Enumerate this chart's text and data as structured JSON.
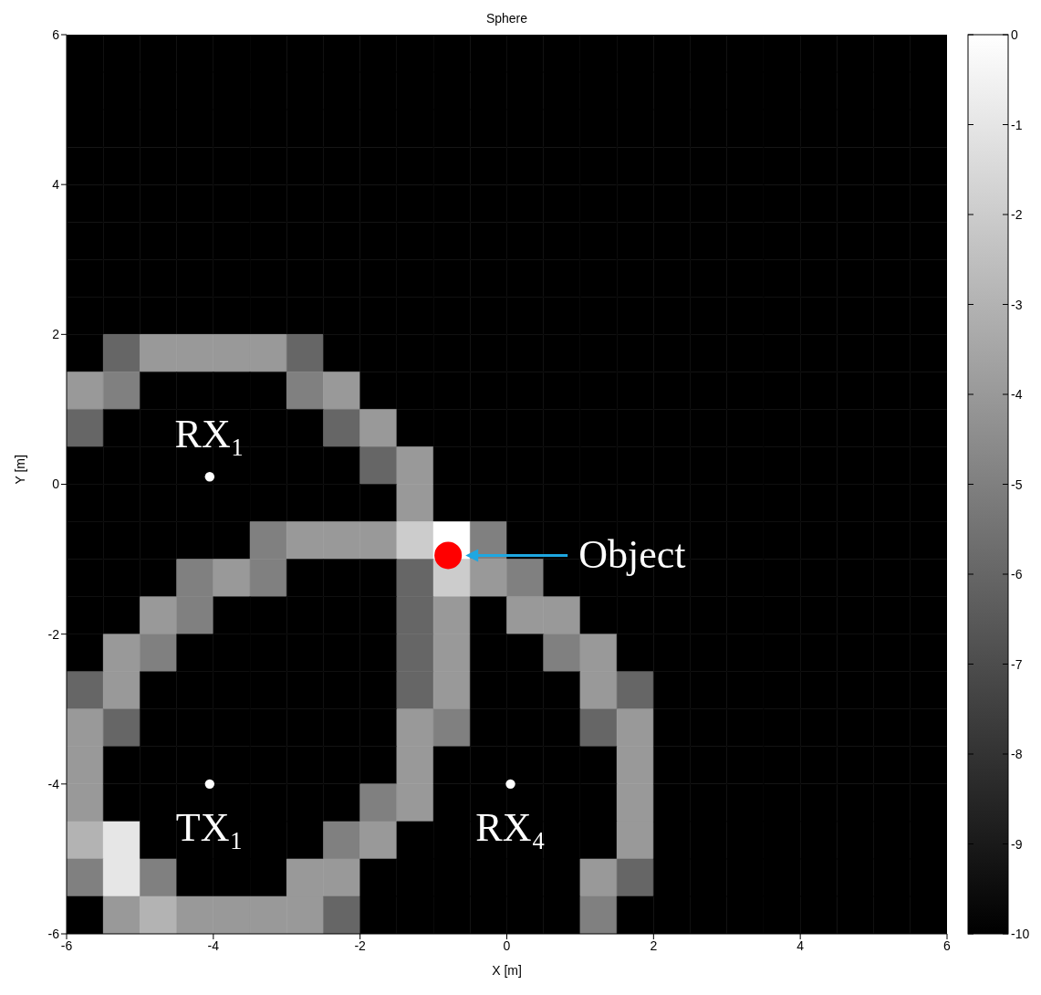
{
  "chart_data": {
    "type": "heatmap",
    "title": "Sphere",
    "xlabel": "X [m]",
    "ylabel": "Y [m]",
    "x": [
      -5.75,
      -5.25,
      -4.75,
      -4.25,
      -3.75,
      -3.25,
      -2.75,
      -2.25,
      -1.75,
      -1.25,
      -0.75,
      -0.25,
      0.25,
      0.75,
      1.25,
      1.75,
      2.25,
      2.75,
      3.25,
      3.75,
      4.25,
      4.75,
      5.25,
      5.75
    ],
    "y": [
      5.75,
      5.25,
      4.75,
      4.25,
      3.75,
      3.25,
      2.75,
      2.25,
      1.75,
      1.25,
      0.75,
      0.25,
      -0.25,
      -0.75,
      -1.25,
      -1.75,
      -2.25,
      -2.75,
      -3.25,
      -3.75,
      -4.25,
      -4.75,
      -5.25,
      -5.75
    ],
    "xlim": [
      -6,
      6
    ],
    "ylim": [
      -6,
      6
    ],
    "xticks": [
      -6,
      -4,
      -2,
      0,
      2,
      4,
      6
    ],
    "yticks": [
      -6,
      -4,
      -2,
      0,
      2,
      4,
      6
    ],
    "clim": [
      -10,
      0
    ],
    "cticks": [
      -10,
      -9,
      -8,
      -7,
      -6,
      -5,
      -4,
      -3,
      -2,
      -1,
      0
    ],
    "cells": [
      [
        -10,
        -10,
        -10,
        -10,
        -10,
        -10,
        -10,
        -10,
        -10,
        -10,
        -10,
        -10,
        -10,
        -10,
        -10,
        -10,
        -10,
        -10,
        -10,
        -10,
        -10,
        -10,
        -10,
        -10
      ],
      [
        -10,
        -10,
        -10,
        -10,
        -10,
        -10,
        -10,
        -10,
        -10,
        -10,
        -10,
        -10,
        -10,
        -10,
        -10,
        -10,
        -10,
        -10,
        -10,
        -10,
        -10,
        -10,
        -10,
        -10
      ],
      [
        -10,
        -10,
        -10,
        -10,
        -10,
        -10,
        -10,
        -10,
        -10,
        -10,
        -10,
        -10,
        -10,
        -10,
        -10,
        -10,
        -10,
        -10,
        -10,
        -10,
        -10,
        -10,
        -10,
        -10
      ],
      [
        -10,
        -10,
        -10,
        -10,
        -10,
        -10,
        -10,
        -10,
        -10,
        -10,
        -10,
        -10,
        -10,
        -10,
        -10,
        -10,
        -10,
        -10,
        -10,
        -10,
        -10,
        -10,
        -10,
        -10
      ],
      [
        -10,
        -10,
        -10,
        -10,
        -10,
        -10,
        -10,
        -10,
        -10,
        -10,
        -10,
        -10,
        -10,
        -10,
        -10,
        -10,
        -10,
        -10,
        -10,
        -10,
        -10,
        -10,
        -10,
        -10
      ],
      [
        -10,
        -10,
        -10,
        -10,
        -10,
        -10,
        -10,
        -10,
        -10,
        -10,
        -10,
        -10,
        -10,
        -10,
        -10,
        -10,
        -10,
        -10,
        -10,
        -10,
        -10,
        -10,
        -10,
        -10
      ],
      [
        -10,
        -10,
        -10,
        -10,
        -10,
        -10,
        -10,
        -10,
        -10,
        -10,
        -10,
        -10,
        -10,
        -10,
        -10,
        -10,
        -10,
        -10,
        -10,
        -10,
        -10,
        -10,
        -10,
        -10
      ],
      [
        -10,
        -10,
        -10,
        -10,
        -10,
        -10,
        -10,
        -10,
        -10,
        -10,
        -10,
        -10,
        -10,
        -10,
        -10,
        -10,
        -10,
        -10,
        -10,
        -10,
        -10,
        -10,
        -10,
        -10
      ],
      [
        -10,
        -6,
        -4,
        -4,
        -4,
        -4,
        -6,
        -10,
        -10,
        -10,
        -10,
        -10,
        -10,
        -10,
        -10,
        -10,
        -10,
        -10,
        -10,
        -10,
        -10,
        -10,
        -10,
        -10
      ],
      [
        -4,
        -5,
        -10,
        -10,
        -10,
        -10,
        -5,
        -4,
        -10,
        -10,
        -10,
        -10,
        -10,
        -10,
        -10,
        -10,
        -10,
        -10,
        -10,
        -10,
        -10,
        -10,
        -10,
        -10
      ],
      [
        -6,
        -10,
        -10,
        -10,
        -10,
        -10,
        -10,
        -6,
        -4,
        -10,
        -10,
        -10,
        -10,
        -10,
        -10,
        -10,
        -10,
        -10,
        -10,
        -10,
        -10,
        -10,
        -10,
        -10
      ],
      [
        -10,
        -10,
        -10,
        -10,
        -10,
        -10,
        -10,
        -10,
        -6,
        -4,
        -10,
        -10,
        -10,
        -10,
        -10,
        -10,
        -10,
        -10,
        -10,
        -10,
        -10,
        -10,
        -10,
        -10
      ],
      [
        -10,
        -10,
        -10,
        -10,
        -10,
        -10,
        -10,
        -10,
        -10,
        -4,
        -10,
        -10,
        -10,
        -10,
        -10,
        -10,
        -10,
        -10,
        -10,
        -10,
        -10,
        -10,
        -10,
        -10
      ],
      [
        -10,
        -10,
        -10,
        -10,
        -10,
        -5,
        -4,
        -4,
        -4,
        -2,
        0,
        -5,
        -10,
        -10,
        -10,
        -10,
        -10,
        -10,
        -10,
        -10,
        -10,
        -10,
        -10,
        -10
      ],
      [
        -10,
        -10,
        -10,
        -5,
        -4,
        -5,
        -10,
        -10,
        -10,
        -6,
        -2,
        -4,
        -5,
        -10,
        -10,
        -10,
        -10,
        -10,
        -10,
        -10,
        -10,
        -10,
        -10,
        -10
      ],
      [
        -10,
        -10,
        -4,
        -5,
        -10,
        -10,
        -10,
        -10,
        -10,
        -6,
        -4,
        -10,
        -4,
        -4,
        -10,
        -10,
        -10,
        -10,
        -10,
        -10,
        -10,
        -10,
        -10,
        -10
      ],
      [
        -10,
        -4,
        -5,
        -10,
        -10,
        -10,
        -10,
        -10,
        -10,
        -6,
        -4,
        -10,
        -10,
        -5,
        -4,
        -10,
        -10,
        -10,
        -10,
        -10,
        -10,
        -10,
        -10,
        -10
      ],
      [
        -6,
        -4,
        -10,
        -10,
        -10,
        -10,
        -10,
        -10,
        -10,
        -6,
        -4,
        -10,
        -10,
        -10,
        -4,
        -6,
        -10,
        -10,
        -10,
        -10,
        -10,
        -10,
        -10,
        -10
      ],
      [
        -4,
        -6,
        -10,
        -10,
        -10,
        -10,
        -10,
        -10,
        -10,
        -4,
        -5,
        -10,
        -10,
        -10,
        -6,
        -4,
        -10,
        -10,
        -10,
        -10,
        -10,
        -10,
        -10,
        -10
      ],
      [
        -4,
        -10,
        -10,
        -10,
        -10,
        -10,
        -10,
        -10,
        -10,
        -4,
        -10,
        -10,
        -10,
        -10,
        -10,
        -4,
        -10,
        -10,
        -10,
        -10,
        -10,
        -10,
        -10,
        -10
      ],
      [
        -4,
        -10,
        -10,
        -10,
        -10,
        -10,
        -10,
        -10,
        -5,
        -4,
        -10,
        -10,
        -10,
        -10,
        -10,
        -4,
        -10,
        -10,
        -10,
        -10,
        -10,
        -10,
        -10,
        -10
      ],
      [
        -3,
        -1,
        -10,
        -10,
        -10,
        -10,
        -10,
        -5,
        -4,
        -10,
        -10,
        -10,
        -10,
        -10,
        -10,
        -4,
        -10,
        -10,
        -10,
        -10,
        -10,
        -10,
        -10,
        -10
      ],
      [
        -5,
        -1,
        -5,
        -10,
        -10,
        -10,
        -4,
        -4,
        -10,
        -10,
        -10,
        -10,
        -10,
        -10,
        -4,
        -6,
        -10,
        -10,
        -10,
        -10,
        -10,
        -10,
        -10,
        -10
      ],
      [
        -10,
        -4,
        -3,
        -4,
        -4,
        -4,
        -4,
        -6,
        -10,
        -10,
        -10,
        -10,
        -10,
        -10,
        -5,
        -10,
        -10,
        -10,
        -10,
        -10,
        -10,
        -10,
        -10,
        -10
      ]
    ],
    "series": [
      {
        "type": "bubble",
        "name": "RX₁",
        "color": "#ffffff",
        "x": [
          -4.05
        ],
        "values": [
          0.1
        ],
        "sizes": [
          0.12
        ]
      },
      {
        "type": "bubble",
        "name": "TX₁",
        "color": "#ffffff",
        "x": [
          -4.05
        ],
        "values": [
          -4.0
        ],
        "sizes": [
          0.12
        ]
      },
      {
        "type": "bubble",
        "name": "RX₄",
        "color": "#ffffff",
        "x": [
          0.05
        ],
        "values": [
          -4.0
        ],
        "sizes": [
          0.12
        ]
      },
      {
        "type": "bubble",
        "name": "Object",
        "color": "#ff0000",
        "x": [
          -0.8
        ],
        "values": [
          -0.95
        ],
        "sizes": [
          1
        ]
      }
    ]
  }
}
